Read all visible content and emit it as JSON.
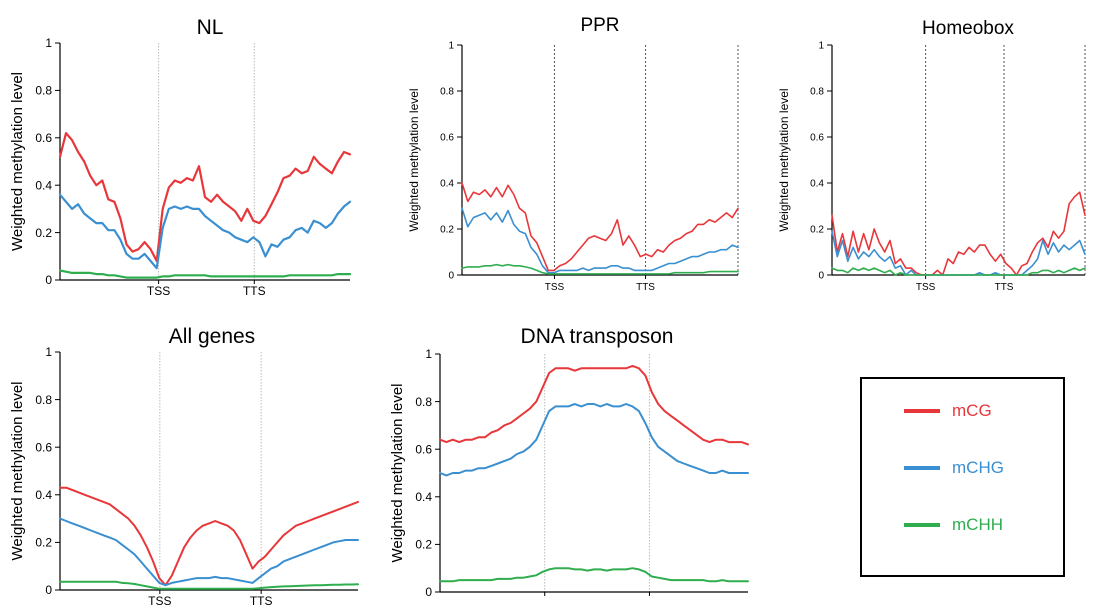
{
  "colors": {
    "mCG": "#e8373a",
    "mCHG": "#3a8fd0",
    "mCHH": "#2fad4f"
  },
  "legend": [
    {
      "label": "mCG",
      "color": "#e8373a"
    },
    {
      "label": "mCHG",
      "color": "#3a8fd0"
    },
    {
      "label": "mCHH",
      "color": "#2fad4f"
    }
  ],
  "chart_data": [
    {
      "type": "line",
      "title": "NL",
      "ylabel": "Weighted methylation level",
      "ylim": [
        0,
        1
      ],
      "yticks": [
        "0",
        "0.2",
        "0.4",
        "0.6",
        "0.8",
        "1"
      ],
      "region_labels": [
        "TSS",
        "TTS"
      ],
      "series": [
        {
          "name": "mCG",
          "values": [
            0.52,
            0.62,
            0.59,
            0.54,
            0.5,
            0.44,
            0.4,
            0.42,
            0.34,
            0.33,
            0.26,
            0.15,
            0.12,
            0.13,
            0.16,
            0.13,
            0.08,
            0.3,
            0.39,
            0.42,
            0.41,
            0.43,
            0.42,
            0.48,
            0.35,
            0.33,
            0.36,
            0.33,
            0.31,
            0.29,
            0.25,
            0.3,
            0.25,
            0.24,
            0.27,
            0.32,
            0.37,
            0.43,
            0.44,
            0.47,
            0.45,
            0.46,
            0.52,
            0.49,
            0.47,
            0.45,
            0.5,
            0.54,
            0.53
          ]
        },
        {
          "name": "mCHG",
          "values": [
            0.36,
            0.33,
            0.3,
            0.32,
            0.28,
            0.26,
            0.24,
            0.24,
            0.21,
            0.21,
            0.17,
            0.11,
            0.09,
            0.09,
            0.11,
            0.08,
            0.05,
            0.22,
            0.3,
            0.31,
            0.3,
            0.31,
            0.3,
            0.3,
            0.27,
            0.25,
            0.23,
            0.21,
            0.2,
            0.18,
            0.17,
            0.16,
            0.18,
            0.16,
            0.1,
            0.15,
            0.14,
            0.17,
            0.18,
            0.21,
            0.22,
            0.2,
            0.25,
            0.24,
            0.22,
            0.24,
            0.28,
            0.31,
            0.33
          ]
        },
        {
          "name": "mCHH",
          "values": [
            0.04,
            0.035,
            0.03,
            0.03,
            0.03,
            0.03,
            0.025,
            0.025,
            0.02,
            0.02,
            0.015,
            0.01,
            0.01,
            0.01,
            0.01,
            0.01,
            0.01,
            0.015,
            0.015,
            0.02,
            0.02,
            0.02,
            0.02,
            0.02,
            0.02,
            0.015,
            0.015,
            0.015,
            0.015,
            0.015,
            0.015,
            0.015,
            0.015,
            0.015,
            0.015,
            0.015,
            0.015,
            0.015,
            0.02,
            0.02,
            0.02,
            0.02,
            0.02,
            0.02,
            0.02,
            0.02,
            0.025,
            0.025,
            0.025
          ]
        }
      ]
    },
    {
      "type": "line",
      "title": "PPR",
      "ylabel": "Weighted methylation level",
      "ylim": [
        0,
        1
      ],
      "yticks": [
        "0",
        "0.2",
        "0.4",
        "0.6",
        "0.8",
        "1"
      ],
      "region_labels": [
        "TSS",
        "TTS"
      ],
      "series": [
        {
          "name": "mCG",
          "values": [
            0.4,
            0.32,
            0.36,
            0.35,
            0.37,
            0.34,
            0.38,
            0.34,
            0.39,
            0.35,
            0.29,
            0.27,
            0.17,
            0.14,
            0.08,
            0.02,
            0.02,
            0.04,
            0.05,
            0.07,
            0.1,
            0.13,
            0.16,
            0.17,
            0.16,
            0.15,
            0.18,
            0.24,
            0.13,
            0.17,
            0.13,
            0.08,
            0.09,
            0.08,
            0.11,
            0.1,
            0.13,
            0.15,
            0.16,
            0.18,
            0.19,
            0.22,
            0.22,
            0.24,
            0.23,
            0.25,
            0.27,
            0.25,
            0.29
          ]
        },
        {
          "name": "mCHG",
          "values": [
            0.29,
            0.21,
            0.25,
            0.26,
            0.27,
            0.24,
            0.27,
            0.23,
            0.28,
            0.22,
            0.19,
            0.18,
            0.12,
            0.09,
            0.04,
            0.01,
            0.01,
            0.02,
            0.02,
            0.02,
            0.02,
            0.03,
            0.02,
            0.03,
            0.03,
            0.03,
            0.04,
            0.04,
            0.03,
            0.03,
            0.02,
            0.02,
            0.02,
            0.02,
            0.03,
            0.04,
            0.05,
            0.05,
            0.06,
            0.07,
            0.08,
            0.08,
            0.09,
            0.1,
            0.1,
            0.11,
            0.11,
            0.13,
            0.12
          ]
        },
        {
          "name": "mCHH",
          "values": [
            0.03,
            0.035,
            0.035,
            0.035,
            0.04,
            0.04,
            0.045,
            0.04,
            0.045,
            0.04,
            0.04,
            0.035,
            0.03,
            0.02,
            0.01,
            0.005,
            0.005,
            0.005,
            0.005,
            0.005,
            0.005,
            0.005,
            0.005,
            0.005,
            0.005,
            0.005,
            0.005,
            0.005,
            0.005,
            0.005,
            0.005,
            0.005,
            0.005,
            0.005,
            0.005,
            0.005,
            0.005,
            0.01,
            0.01,
            0.01,
            0.01,
            0.01,
            0.01,
            0.015,
            0.015,
            0.015,
            0.015,
            0.015,
            0.015
          ]
        }
      ]
    },
    {
      "type": "line",
      "title": "Homeobox",
      "ylabel": "Weighted methylation level",
      "ylim": [
        0,
        1
      ],
      "yticks": [
        "0",
        "0.2",
        "0.4",
        "0.6",
        "0.8",
        "1"
      ],
      "region_labels": [
        "TSS",
        "TTS"
      ],
      "series": [
        {
          "name": "mCG",
          "values": [
            0.26,
            0.1,
            0.18,
            0.08,
            0.19,
            0.1,
            0.18,
            0.11,
            0.2,
            0.14,
            0.1,
            0.15,
            0.05,
            0.07,
            0.03,
            0.03,
            0.01,
            0.0,
            0.0,
            0.0,
            0.02,
            0.0,
            0.07,
            0.05,
            0.1,
            0.09,
            0.12,
            0.1,
            0.13,
            0.13,
            0.09,
            0.06,
            0.09,
            0.05,
            0.03,
            0.0,
            0.04,
            0.05,
            0.1,
            0.14,
            0.16,
            0.12,
            0.19,
            0.16,
            0.19,
            0.31,
            0.34,
            0.36,
            0.26
          ]
        },
        {
          "name": "mCHG",
          "values": [
            0.19,
            0.08,
            0.15,
            0.06,
            0.12,
            0.07,
            0.1,
            0.08,
            0.11,
            0.08,
            0.06,
            0.08,
            0.03,
            0.04,
            0.0,
            0.02,
            0.0,
            0.0,
            0.0,
            0.0,
            0.0,
            0.0,
            0.0,
            0.0,
            0.0,
            0.0,
            0.0,
            0.0,
            0.01,
            0.0,
            0.0,
            0.01,
            0.0,
            0.0,
            0.0,
            0.0,
            0.0,
            0.02,
            0.04,
            0.07,
            0.15,
            0.09,
            0.14,
            0.1,
            0.13,
            0.11,
            0.13,
            0.15,
            0.09
          ]
        },
        {
          "name": "mCHH",
          "values": [
            0.03,
            0.02,
            0.02,
            0.01,
            0.03,
            0.02,
            0.03,
            0.02,
            0.03,
            0.02,
            0.01,
            0.02,
            0.0,
            0.01,
            0.0,
            0.0,
            0.0,
            0.0,
            0.0,
            0.0,
            0.0,
            0.0,
            0.0,
            0.0,
            0.0,
            0.0,
            0.0,
            0.0,
            0.0,
            0.0,
            0.0,
            0.0,
            0.0,
            0.0,
            0.0,
            0.0,
            0.0,
            0.0,
            0.01,
            0.01,
            0.02,
            0.02,
            0.01,
            0.02,
            0.01,
            0.02,
            0.03,
            0.02,
            0.03
          ]
        }
      ]
    },
    {
      "type": "line",
      "title": "All genes",
      "ylabel": "Weighted methylation level",
      "ylim": [
        0,
        1
      ],
      "yticks": [
        "0",
        "0.2",
        "0.4",
        "0.6",
        "0.8",
        "1"
      ],
      "region_labels": [
        "TSS",
        "TTS"
      ],
      "series": [
        {
          "name": "mCG",
          "values": [
            0.43,
            0.43,
            0.42,
            0.41,
            0.4,
            0.39,
            0.38,
            0.37,
            0.36,
            0.34,
            0.32,
            0.3,
            0.27,
            0.23,
            0.18,
            0.12,
            0.05,
            0.02,
            0.06,
            0.12,
            0.18,
            0.22,
            0.25,
            0.27,
            0.28,
            0.29,
            0.28,
            0.27,
            0.25,
            0.21,
            0.15,
            0.09,
            0.12,
            0.14,
            0.17,
            0.2,
            0.23,
            0.25,
            0.27,
            0.28,
            0.29,
            0.3,
            0.31,
            0.32,
            0.33,
            0.34,
            0.35,
            0.36,
            0.37
          ]
        },
        {
          "name": "mCHG",
          "values": [
            0.3,
            0.29,
            0.28,
            0.27,
            0.26,
            0.25,
            0.24,
            0.23,
            0.22,
            0.21,
            0.19,
            0.17,
            0.15,
            0.12,
            0.09,
            0.06,
            0.03,
            0.02,
            0.03,
            0.035,
            0.04,
            0.045,
            0.05,
            0.05,
            0.05,
            0.055,
            0.05,
            0.05,
            0.045,
            0.04,
            0.035,
            0.03,
            0.05,
            0.07,
            0.09,
            0.1,
            0.12,
            0.13,
            0.14,
            0.15,
            0.16,
            0.17,
            0.18,
            0.19,
            0.2,
            0.205,
            0.21,
            0.21,
            0.21
          ]
        },
        {
          "name": "mCHH",
          "values": [
            0.035,
            0.035,
            0.035,
            0.035,
            0.035,
            0.035,
            0.035,
            0.035,
            0.035,
            0.035,
            0.03,
            0.028,
            0.025,
            0.02,
            0.015,
            0.01,
            0.005,
            0.005,
            0.005,
            0.005,
            0.005,
            0.005,
            0.005,
            0.005,
            0.005,
            0.005,
            0.005,
            0.005,
            0.005,
            0.005,
            0.005,
            0.005,
            0.007,
            0.01,
            0.012,
            0.014,
            0.015,
            0.016,
            0.017,
            0.018,
            0.019,
            0.02,
            0.02,
            0.021,
            0.022,
            0.022,
            0.023,
            0.023,
            0.024
          ]
        }
      ]
    },
    {
      "type": "line",
      "title": "DNA transposon",
      "ylabel": "Weighted methylation level",
      "ylim": [
        0,
        1
      ],
      "yticks": [
        "0",
        "0.2",
        "0.4",
        "0.6",
        "0.8",
        "1"
      ],
      "region_labels": [],
      "series": [
        {
          "name": "mCG",
          "values": [
            0.64,
            0.63,
            0.64,
            0.63,
            0.64,
            0.64,
            0.65,
            0.65,
            0.67,
            0.68,
            0.7,
            0.71,
            0.73,
            0.75,
            0.77,
            0.8,
            0.86,
            0.92,
            0.94,
            0.94,
            0.94,
            0.93,
            0.94,
            0.94,
            0.94,
            0.94,
            0.94,
            0.94,
            0.94,
            0.94,
            0.95,
            0.94,
            0.91,
            0.84,
            0.79,
            0.76,
            0.74,
            0.72,
            0.7,
            0.68,
            0.66,
            0.64,
            0.63,
            0.64,
            0.64,
            0.63,
            0.63,
            0.63,
            0.62
          ]
        },
        {
          "name": "mCHG",
          "values": [
            0.5,
            0.49,
            0.5,
            0.5,
            0.51,
            0.51,
            0.52,
            0.52,
            0.53,
            0.54,
            0.55,
            0.56,
            0.58,
            0.59,
            0.61,
            0.64,
            0.7,
            0.76,
            0.78,
            0.78,
            0.78,
            0.79,
            0.78,
            0.79,
            0.79,
            0.78,
            0.79,
            0.78,
            0.78,
            0.79,
            0.78,
            0.76,
            0.71,
            0.65,
            0.61,
            0.59,
            0.57,
            0.55,
            0.54,
            0.53,
            0.52,
            0.51,
            0.5,
            0.5,
            0.51,
            0.5,
            0.5,
            0.5,
            0.5
          ]
        },
        {
          "name": "mCHH",
          "values": [
            0.045,
            0.045,
            0.045,
            0.05,
            0.05,
            0.05,
            0.05,
            0.05,
            0.05,
            0.055,
            0.055,
            0.055,
            0.06,
            0.06,
            0.065,
            0.07,
            0.085,
            0.095,
            0.1,
            0.1,
            0.1,
            0.095,
            0.095,
            0.09,
            0.095,
            0.095,
            0.09,
            0.095,
            0.095,
            0.095,
            0.1,
            0.095,
            0.085,
            0.065,
            0.06,
            0.055,
            0.05,
            0.05,
            0.05,
            0.05,
            0.05,
            0.05,
            0.045,
            0.045,
            0.05,
            0.045,
            0.045,
            0.045,
            0.045
          ]
        }
      ]
    }
  ]
}
